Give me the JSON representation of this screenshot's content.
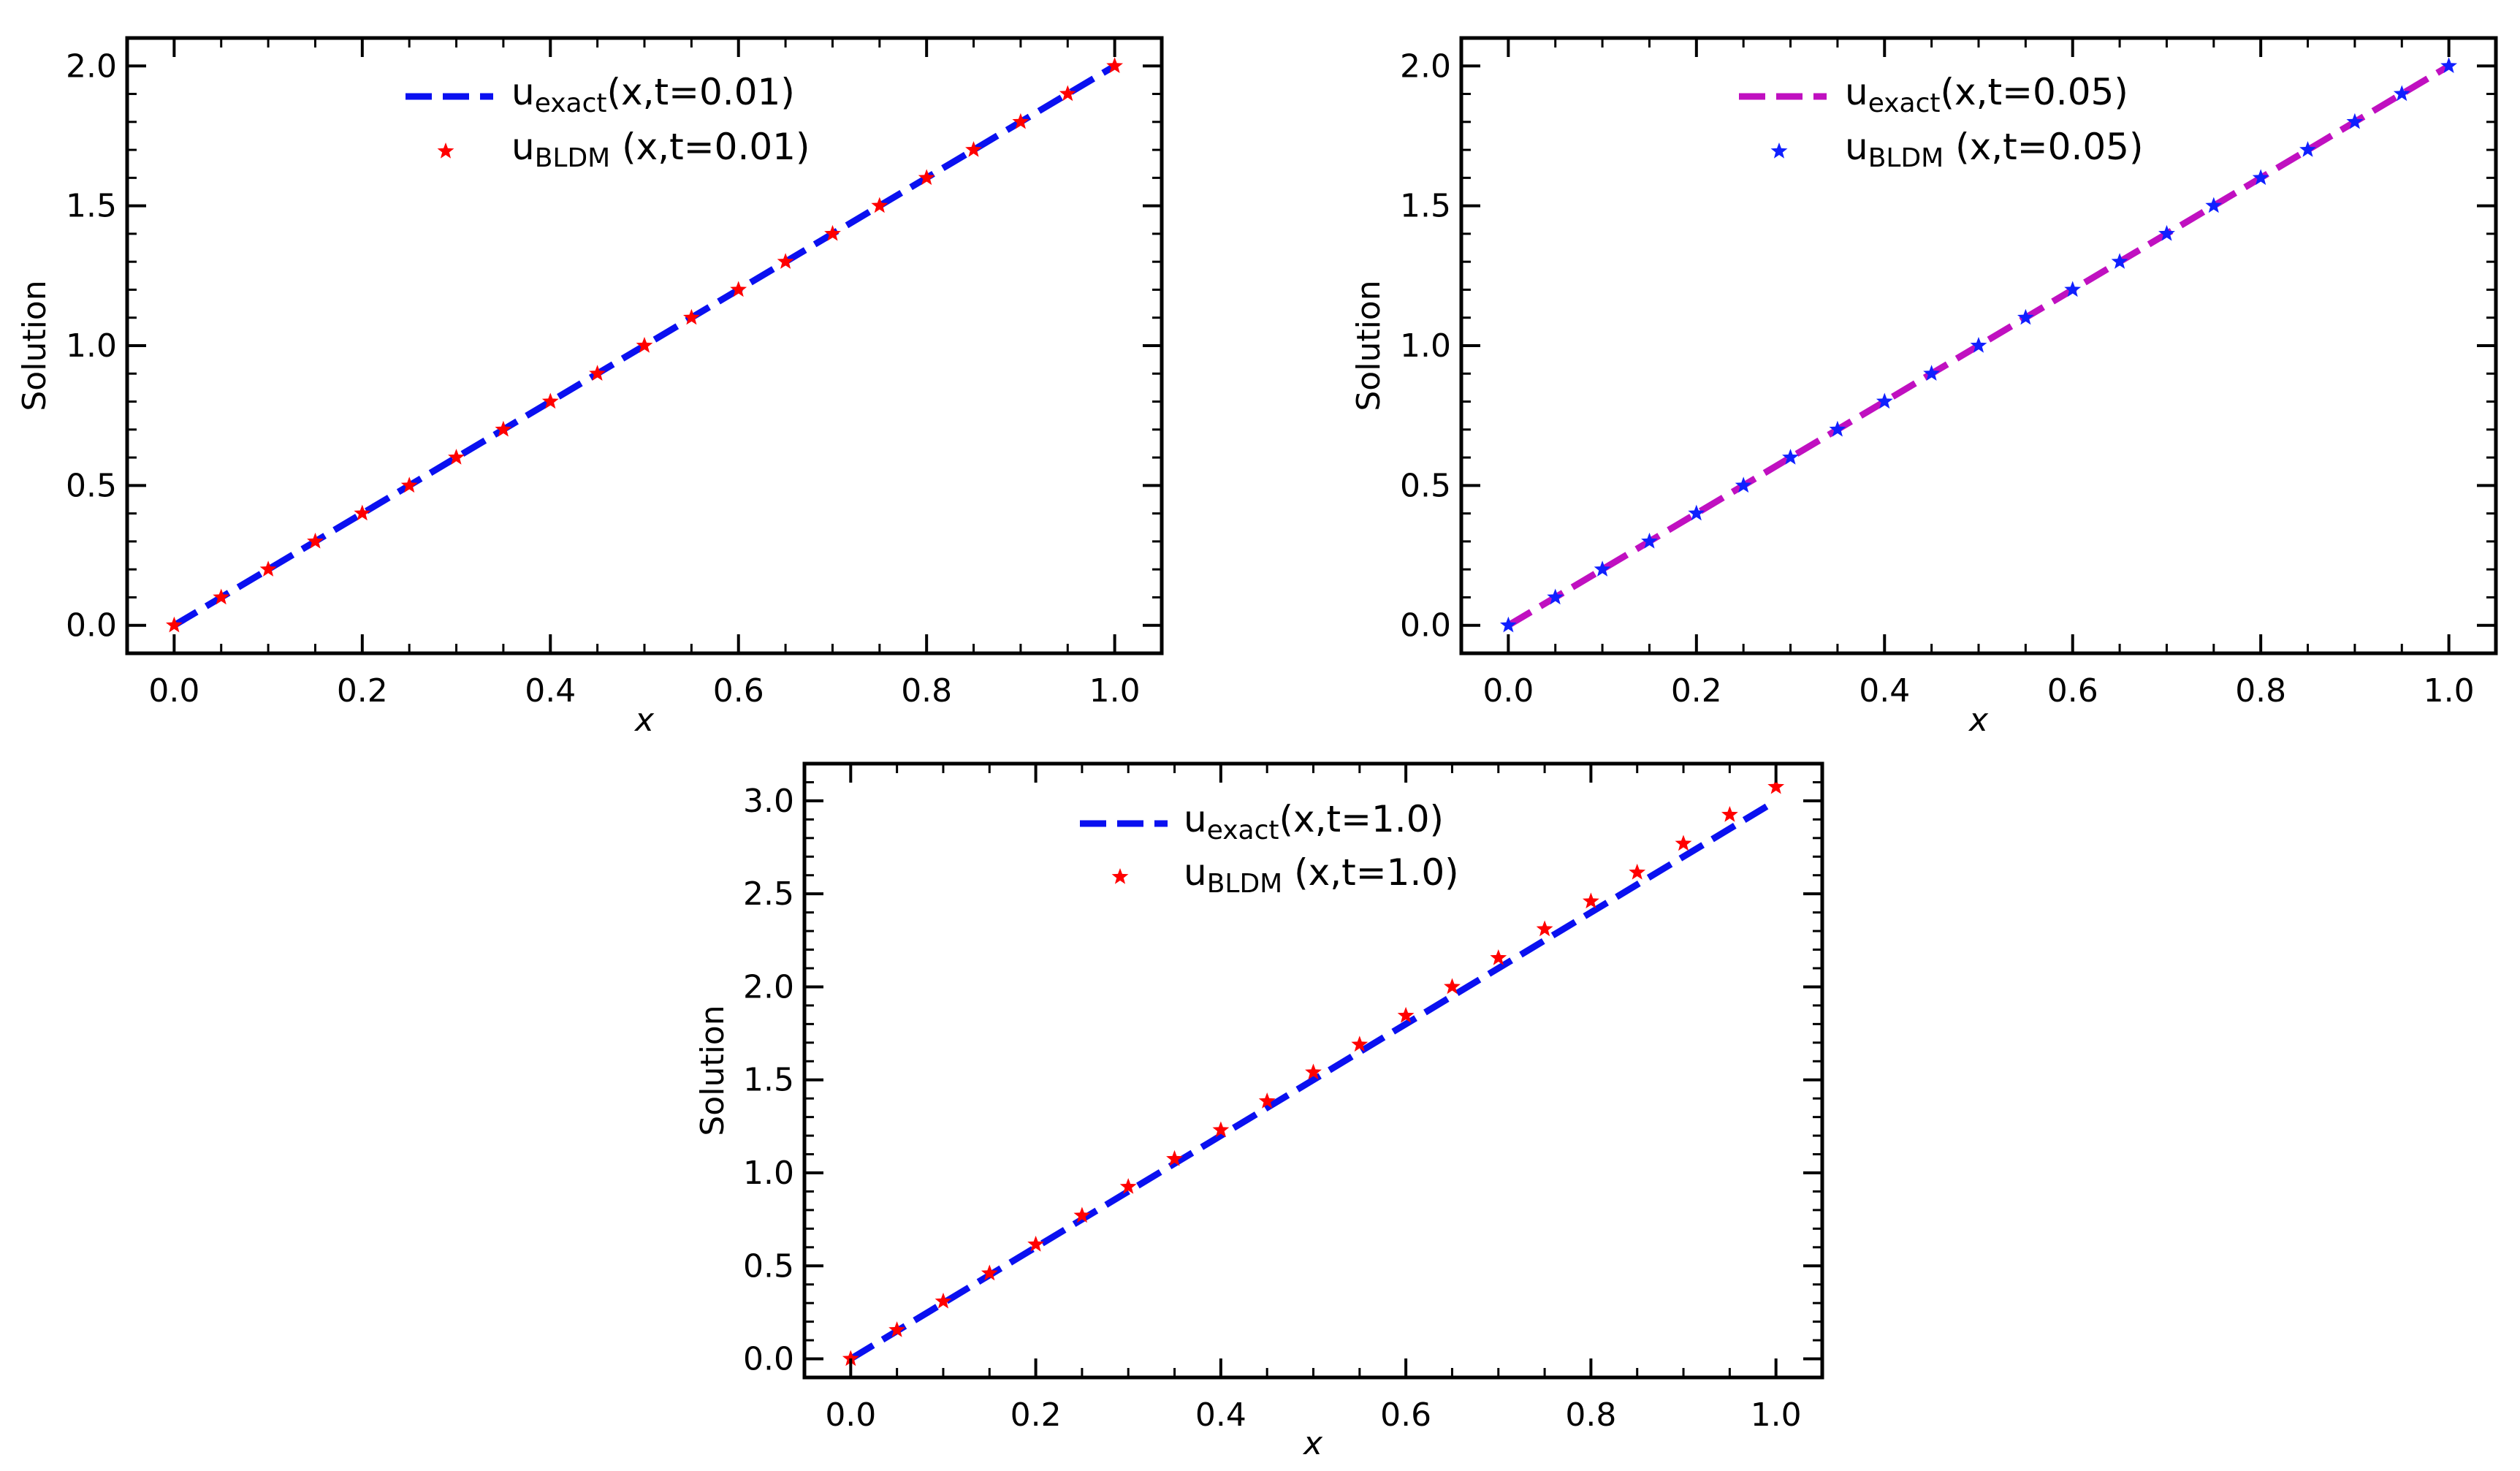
{
  "chart_data": [
    {
      "type": "line",
      "xlabel": "x",
      "ylabel": "Solution",
      "xlim": [
        -0.05,
        1.05
      ],
      "ylim": [
        -0.1,
        2.1
      ],
      "xticks": [
        "0.0",
        "0.2",
        "0.4",
        "0.6",
        "0.8",
        "1.0"
      ],
      "yticks": [
        "0.0",
        "0.5",
        "1.0",
        "1.5",
        "2.0"
      ],
      "legend_position": "top-center",
      "series": [
        {
          "name": "u_exact(x,t=0.01)",
          "label_base": "u",
          "label_sub": "exact",
          "label_rest": "(x,t=0.01)",
          "style": "dashed-line",
          "color": "#0a10f0",
          "x": [
            0.0,
            1.0
          ],
          "y": [
            0.0,
            2.0
          ]
        },
        {
          "name": "u_BLDM (x,t=0.01)",
          "label_base": "u",
          "label_sub": "BLDM",
          "label_rest": " (x,t=0.01)",
          "style": "star-markers",
          "color": "#ff0000",
          "x": [
            0.0,
            0.05,
            0.1,
            0.15,
            0.2,
            0.25,
            0.3,
            0.35,
            0.4,
            0.45,
            0.5,
            0.55,
            0.6,
            0.65,
            0.7,
            0.75,
            0.8,
            0.85,
            0.9,
            0.95,
            1.0
          ],
          "y": [
            0.0,
            0.1,
            0.2,
            0.3,
            0.4,
            0.5,
            0.6,
            0.7,
            0.8,
            0.9,
            1.0,
            1.1,
            1.2,
            1.3,
            1.4,
            1.5,
            1.6,
            1.7,
            1.8,
            1.9,
            2.0
          ]
        }
      ]
    },
    {
      "type": "line",
      "xlabel": "x",
      "ylabel": "Solution",
      "xlim": [
        -0.05,
        1.05
      ],
      "ylim": [
        -0.1,
        2.1
      ],
      "xticks": [
        "0.0",
        "0.2",
        "0.4",
        "0.6",
        "0.8",
        "1.0"
      ],
      "yticks": [
        "0.0",
        "0.5",
        "1.0",
        "1.5",
        "2.0"
      ],
      "legend_position": "top-center",
      "series": [
        {
          "name": "u_exact(x,t=0.05)",
          "label_base": "u",
          "label_sub": "exact",
          "label_rest": "(x,t=0.05)",
          "style": "dashed-line",
          "color": "#c010c0",
          "x": [
            0.0,
            1.0
          ],
          "y": [
            0.0,
            2.0
          ]
        },
        {
          "name": "u_BLDM (x,t=0.05)",
          "label_base": "u",
          "label_sub": "BLDM",
          "label_rest": " (x,t=0.05)",
          "style": "star-markers",
          "color": "#1020ff",
          "x": [
            0.0,
            0.05,
            0.1,
            0.15,
            0.2,
            0.25,
            0.3,
            0.35,
            0.4,
            0.45,
            0.5,
            0.55,
            0.6,
            0.65,
            0.7,
            0.75,
            0.8,
            0.85,
            0.9,
            0.95,
            1.0
          ],
          "y": [
            0.0,
            0.1,
            0.2,
            0.3,
            0.4,
            0.5,
            0.6,
            0.7,
            0.8,
            0.9,
            1.0,
            1.1,
            1.2,
            1.3,
            1.4,
            1.5,
            1.6,
            1.7,
            1.8,
            1.9,
            2.0
          ]
        }
      ]
    },
    {
      "type": "line",
      "xlabel": "x",
      "ylabel": "Solution",
      "xlim": [
        -0.05,
        1.05
      ],
      "ylim": [
        -0.1,
        3.2
      ],
      "xticks": [
        "0.0",
        "0.2",
        "0.4",
        "0.6",
        "0.8",
        "1.0"
      ],
      "yticks": [
        "0.0",
        "0.5",
        "1.0",
        "1.5",
        "2.0",
        "2.5",
        "3.0"
      ],
      "legend_position": "top-center",
      "series": [
        {
          "name": "u_exact(x,t=1.0)",
          "label_base": "u",
          "label_sub": "exact",
          "label_rest": "(x,t=1.0)",
          "style": "dashed-line",
          "color": "#0a10f0",
          "x": [
            0.0,
            1.0
          ],
          "y": [
            0.0,
            3.0
          ]
        },
        {
          "name": "u_BLDM (x,t=1.0)",
          "label_base": "u",
          "label_sub": "BLDM",
          "label_rest": " (x,t=1.0)",
          "style": "star-markers",
          "color": "#ff0000",
          "x": [
            0.0,
            0.05,
            0.1,
            0.15,
            0.2,
            0.25,
            0.3,
            0.35,
            0.4,
            0.45,
            0.5,
            0.55,
            0.6,
            0.65,
            0.7,
            0.75,
            0.8,
            0.85,
            0.9,
            0.95,
            1.0
          ],
          "y": [
            0.0,
            0.155,
            0.309,
            0.46,
            0.615,
            0.77,
            0.925,
            1.075,
            1.23,
            1.385,
            1.54,
            1.69,
            1.845,
            2.0,
            2.155,
            2.31,
            2.46,
            2.615,
            2.77,
            2.925,
            3.075
          ]
        }
      ]
    }
  ]
}
